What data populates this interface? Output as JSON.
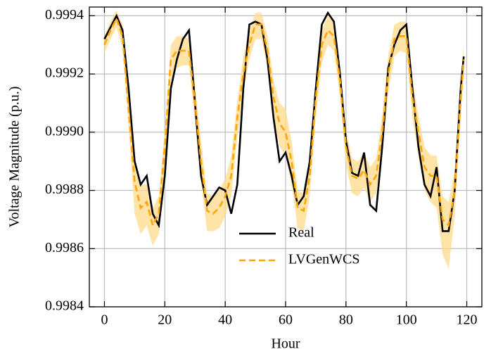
{
  "chart_data": {
    "type": "line",
    "xlabel": "Hour",
    "ylabel": "Voltage Magnitude (p.u.)",
    "x": [
      0,
      2,
      4,
      6,
      8,
      10,
      12,
      14,
      16,
      18,
      20,
      22,
      24,
      26,
      28,
      30,
      32,
      34,
      36,
      38,
      40,
      42,
      44,
      46,
      48,
      50,
      52,
      54,
      56,
      58,
      60,
      62,
      64,
      66,
      68,
      70,
      72,
      74,
      76,
      78,
      80,
      82,
      84,
      86,
      88,
      90,
      92,
      94,
      96,
      98,
      100,
      102,
      104,
      106,
      108,
      110,
      112,
      114,
      116,
      118,
      119
    ],
    "series": [
      {
        "name": "Real",
        "color": "#000000",
        "style": "solid",
        "values": [
          0.99932,
          0.99936,
          0.9994,
          0.99935,
          0.99915,
          0.9989,
          0.99882,
          0.99885,
          0.99872,
          0.99868,
          0.99885,
          0.99915,
          0.99925,
          0.99932,
          0.99935,
          0.9991,
          0.99885,
          0.99875,
          0.99878,
          0.99881,
          0.9988,
          0.99872,
          0.99882,
          0.99915,
          0.99937,
          0.99938,
          0.99937,
          0.99925,
          0.99905,
          0.9989,
          0.99893,
          0.99885,
          0.99875,
          0.99878,
          0.9989,
          0.99915,
          0.99937,
          0.99941,
          0.99938,
          0.9992,
          0.99897,
          0.99886,
          0.99885,
          0.99893,
          0.99875,
          0.99873,
          0.99895,
          0.99922,
          0.9993,
          0.99935,
          0.99937,
          0.99915,
          0.99895,
          0.99882,
          0.99878,
          0.99888,
          0.99866,
          0.99866,
          0.9988,
          0.99915,
          0.99926
        ]
      },
      {
        "name": "LVGenWCS",
        "color": "#ffa500",
        "style": "dashed",
        "band_color": "#ffd98a",
        "values": [
          0.9993,
          0.99935,
          0.99939,
          0.99933,
          0.99908,
          0.99883,
          0.99874,
          0.99876,
          0.99868,
          0.99872,
          0.99895,
          0.99925,
          0.99928,
          0.99928,
          0.99928,
          0.9991,
          0.9989,
          0.99873,
          0.99872,
          0.99874,
          0.99878,
          0.99885,
          0.99905,
          0.9992,
          0.9993,
          0.99937,
          0.99937,
          0.99928,
          0.99912,
          0.99903,
          0.999,
          0.9989,
          0.99874,
          0.99873,
          0.99885,
          0.99912,
          0.9993,
          0.99935,
          0.99933,
          0.99918,
          0.99895,
          0.99885,
          0.99884,
          0.99887,
          0.99882,
          0.99885,
          0.999,
          0.9992,
          0.99932,
          0.99933,
          0.99933,
          0.99912,
          0.999,
          0.99888,
          0.99885,
          0.99885,
          0.9987,
          0.99868,
          0.9988,
          0.99912,
          0.99925
        ],
        "upper": [
          0.99933,
          0.99938,
          0.99942,
          0.99937,
          0.99913,
          0.99892,
          0.99882,
          0.99882,
          0.99874,
          0.99878,
          0.99901,
          0.9993,
          0.99933,
          0.99933,
          0.99932,
          0.99916,
          0.99897,
          0.99879,
          0.99878,
          0.9988,
          0.99884,
          0.99892,
          0.99911,
          0.99926,
          0.99935,
          0.99941,
          0.99941,
          0.99933,
          0.99918,
          0.9991,
          0.99908,
          0.99897,
          0.9988,
          0.99879,
          0.99891,
          0.99918,
          0.99935,
          0.9994,
          0.99938,
          0.99923,
          0.99901,
          0.99891,
          0.9989,
          0.99893,
          0.99888,
          0.99891,
          0.99906,
          0.99926,
          0.99937,
          0.99938,
          0.99938,
          0.99918,
          0.99906,
          0.99895,
          0.99892,
          0.99892,
          0.99878,
          0.99876,
          0.99887,
          0.99918,
          0.9993
        ],
        "lower": [
          0.99927,
          0.99932,
          0.99936,
          0.99929,
          0.99902,
          0.99872,
          0.99865,
          0.99868,
          0.99861,
          0.99865,
          0.99888,
          0.99918,
          0.99922,
          0.99923,
          0.99923,
          0.99903,
          0.99883,
          0.99866,
          0.99866,
          0.99867,
          0.99871,
          0.99878,
          0.99898,
          0.99914,
          0.99925,
          0.99932,
          0.99932,
          0.99922,
          0.99905,
          0.99895,
          0.99892,
          0.99882,
          0.99867,
          0.99866,
          0.99878,
          0.99905,
          0.99924,
          0.9993,
          0.99928,
          0.99912,
          0.99889,
          0.99879,
          0.99878,
          0.99881,
          0.99876,
          0.99879,
          0.99893,
          0.99913,
          0.99926,
          0.99928,
          0.99927,
          0.99905,
          0.99892,
          0.9988,
          0.99876,
          0.99874,
          0.99858,
          0.99853,
          0.99871,
          0.99905,
          0.99919
        ]
      }
    ],
    "xlim": [
      -5,
      125
    ],
    "xticks": [
      0,
      20,
      40,
      60,
      80,
      100,
      120
    ],
    "ylim": [
      0.9984,
      0.99943
    ],
    "yticks": [
      0.9984,
      0.9986,
      0.9988,
      {
        "value": 0.999,
        "label": "0.9990"
      },
      0.9992,
      0.9994
    ],
    "grid": true,
    "legend": "lower center"
  }
}
